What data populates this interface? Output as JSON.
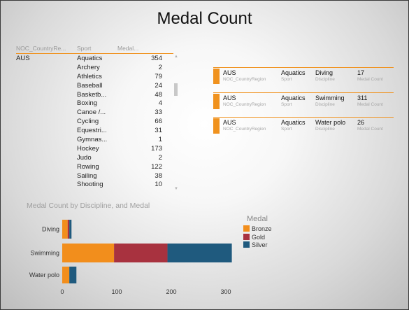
{
  "title": "Medal Count",
  "table": {
    "headers": [
      "NOC_CountryRe...",
      "Sport",
      "Medal..."
    ],
    "country": "AUS",
    "sport": "Aquatics",
    "sport_count": "354",
    "rows": [
      {
        "discipline": "Archery",
        "count": "2"
      },
      {
        "discipline": "Athletics",
        "count": "79"
      },
      {
        "discipline": "Baseball",
        "count": "24"
      },
      {
        "discipline": "Basketb...",
        "count": "48"
      },
      {
        "discipline": "Boxing",
        "count": "4"
      },
      {
        "discipline": "Canoe /...",
        "count": "33"
      },
      {
        "discipline": "Cycling",
        "count": "66"
      },
      {
        "discipline": "Equestri...",
        "count": "31"
      },
      {
        "discipline": "Gymnas...",
        "count": "1"
      },
      {
        "discipline": "Hockey",
        "count": "173"
      },
      {
        "discipline": "Judo",
        "count": "2"
      },
      {
        "discipline": "Rowing",
        "count": "122"
      },
      {
        "discipline": "Sailing",
        "count": "38"
      },
      {
        "discipline": "Shooting",
        "count": "10"
      }
    ]
  },
  "cards": [
    {
      "country": "AUS",
      "country_label": "NOC_CountryRegion",
      "sport": "Aquatics",
      "sport_label": "Sport",
      "discipline": "Diving",
      "discipline_label": "Discipline",
      "count": "17",
      "count_label": "Medal Count"
    },
    {
      "country": "AUS",
      "country_label": "NOC_CountryRegion",
      "sport": "Aquatics",
      "sport_label": "Sport",
      "discipline": "Swimming",
      "discipline_label": "Discipline",
      "count": "311",
      "count_label": "Medal Count"
    },
    {
      "country": "AUS",
      "country_label": "NOC_CountryRegion",
      "sport": "Aquatics",
      "sport_label": "Sport",
      "discipline": "Water polo",
      "discipline_label": "Discipline",
      "count": "26",
      "count_label": "Medal Count"
    }
  ],
  "colors": {
    "accent": "#f0921e",
    "bronze": "#f28e1c",
    "gold": "#a8323f",
    "silver": "#1f5a7e"
  },
  "chart_data": {
    "type": "bar",
    "orientation": "horizontal",
    "stacked": true,
    "title": "Medal Count by Discipline, and Medal",
    "categories": [
      "Diving",
      "Swimming",
      "Water polo"
    ],
    "series": [
      {
        "name": "Bronze",
        "values": [
          10,
          95,
          13
        ],
        "color": "#f28e1c"
      },
      {
        "name": "Gold",
        "values": [
          3,
          98,
          0
        ],
        "color": "#a8323f"
      },
      {
        "name": "Silver",
        "values": [
          4,
          118,
          13
        ],
        "color": "#1f5a7e"
      }
    ],
    "legend_title": "Medal",
    "xticks": [
      "0",
      "100",
      "200",
      "300"
    ],
    "xlim": [
      0,
      320
    ],
    "grid": false,
    "legend": "right"
  }
}
